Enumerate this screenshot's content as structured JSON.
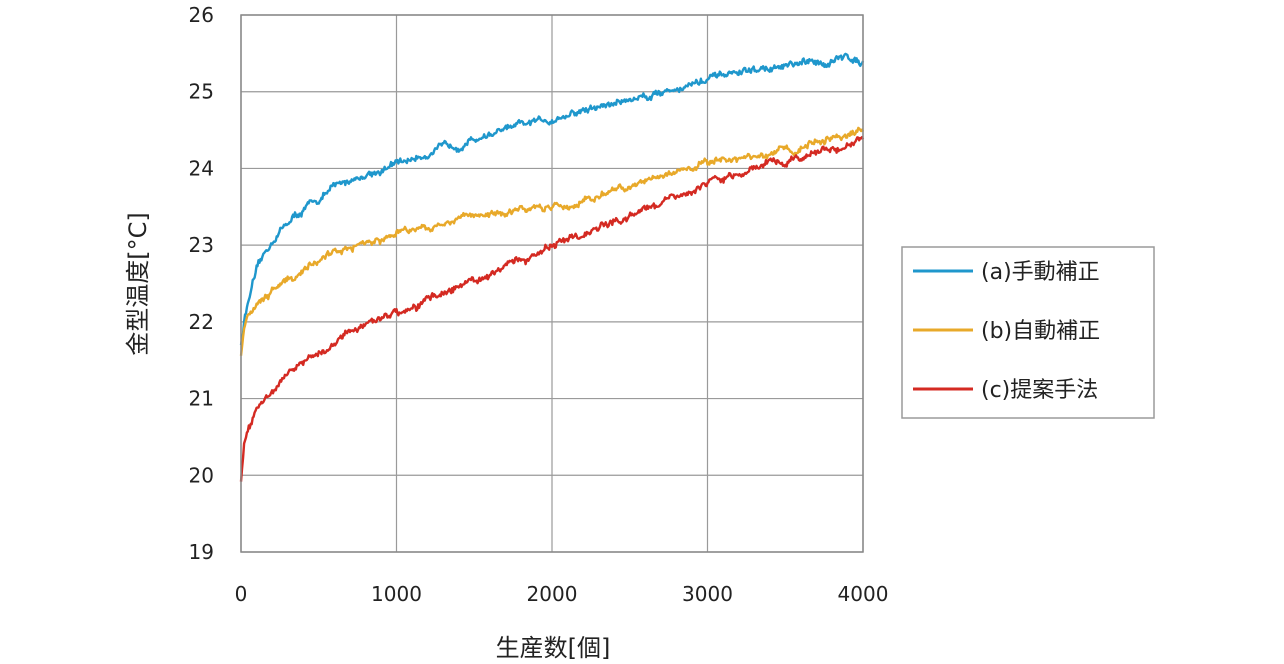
{
  "chart_data": {
    "type": "line",
    "xlabel": "生産数[個]",
    "ylabel": "金型温度[°C]",
    "xlim": [
      0,
      4000
    ],
    "ylim": [
      19,
      26
    ],
    "xticks": [
      0,
      1000,
      2000,
      3000,
      4000
    ],
    "yticks": [
      19,
      20,
      21,
      22,
      23,
      24,
      25,
      26
    ],
    "x_tick_labels": [
      "0",
      "1000",
      "2000",
      "3000",
      "4000"
    ],
    "y_tick_labels": [
      "19",
      "20",
      "21",
      "22",
      "23",
      "24",
      "25",
      "26"
    ],
    "grid": true,
    "legend_position": "right",
    "series": [
      {
        "name": "(a)手動補正",
        "color": "#1f97cc",
        "x": [
          0,
          20,
          50,
          100,
          150,
          200,
          300,
          400,
          500,
          600,
          700,
          800,
          900,
          1000,
          1200,
          1400,
          1600,
          1800,
          2000,
          2200,
          2400,
          2600,
          2800,
          3000,
          3200,
          3400,
          3600,
          3800,
          3900,
          4000
        ],
        "y": [
          21.7,
          22.0,
          22.3,
          22.65,
          22.85,
          23.05,
          23.3,
          23.45,
          23.6,
          23.75,
          23.85,
          23.92,
          23.98,
          24.05,
          24.2,
          24.32,
          24.45,
          24.55,
          24.65,
          24.75,
          24.85,
          24.95,
          25.05,
          25.15,
          25.25,
          25.3,
          25.35,
          25.4,
          25.45,
          25.4
        ]
      },
      {
        "name": "(b)自動補正",
        "color": "#e8a92a",
        "x": [
          0,
          20,
          50,
          100,
          150,
          200,
          300,
          400,
          500,
          600,
          700,
          800,
          900,
          1000,
          1200,
          1400,
          1600,
          1800,
          2000,
          2200,
          2400,
          2600,
          2800,
          3000,
          3200,
          3400,
          3600,
          3800,
          4000
        ],
        "y": [
          21.6,
          21.95,
          22.1,
          22.2,
          22.3,
          22.4,
          22.55,
          22.68,
          22.8,
          22.9,
          22.98,
          23.05,
          23.1,
          23.15,
          23.25,
          23.35,
          23.42,
          23.46,
          23.48,
          23.55,
          23.7,
          23.85,
          23.98,
          24.05,
          24.12,
          24.2,
          24.28,
          24.38,
          24.48
        ]
      },
      {
        "name": "(c)提案手法",
        "color": "#d42a22",
        "x": [
          0,
          20,
          50,
          100,
          150,
          200,
          300,
          400,
          500,
          600,
          700,
          800,
          900,
          1000,
          1200,
          1400,
          1600,
          1800,
          2000,
          2200,
          2400,
          2600,
          2800,
          3000,
          3200,
          3400,
          3600,
          3800,
          4000
        ],
        "y": [
          19.95,
          20.4,
          20.65,
          20.85,
          21.0,
          21.1,
          21.3,
          21.45,
          21.6,
          21.75,
          21.88,
          21.97,
          22.05,
          22.1,
          22.28,
          22.45,
          22.62,
          22.8,
          22.98,
          23.15,
          23.32,
          23.48,
          23.63,
          23.8,
          23.93,
          24.05,
          24.15,
          24.28,
          24.38
        ]
      }
    ]
  }
}
